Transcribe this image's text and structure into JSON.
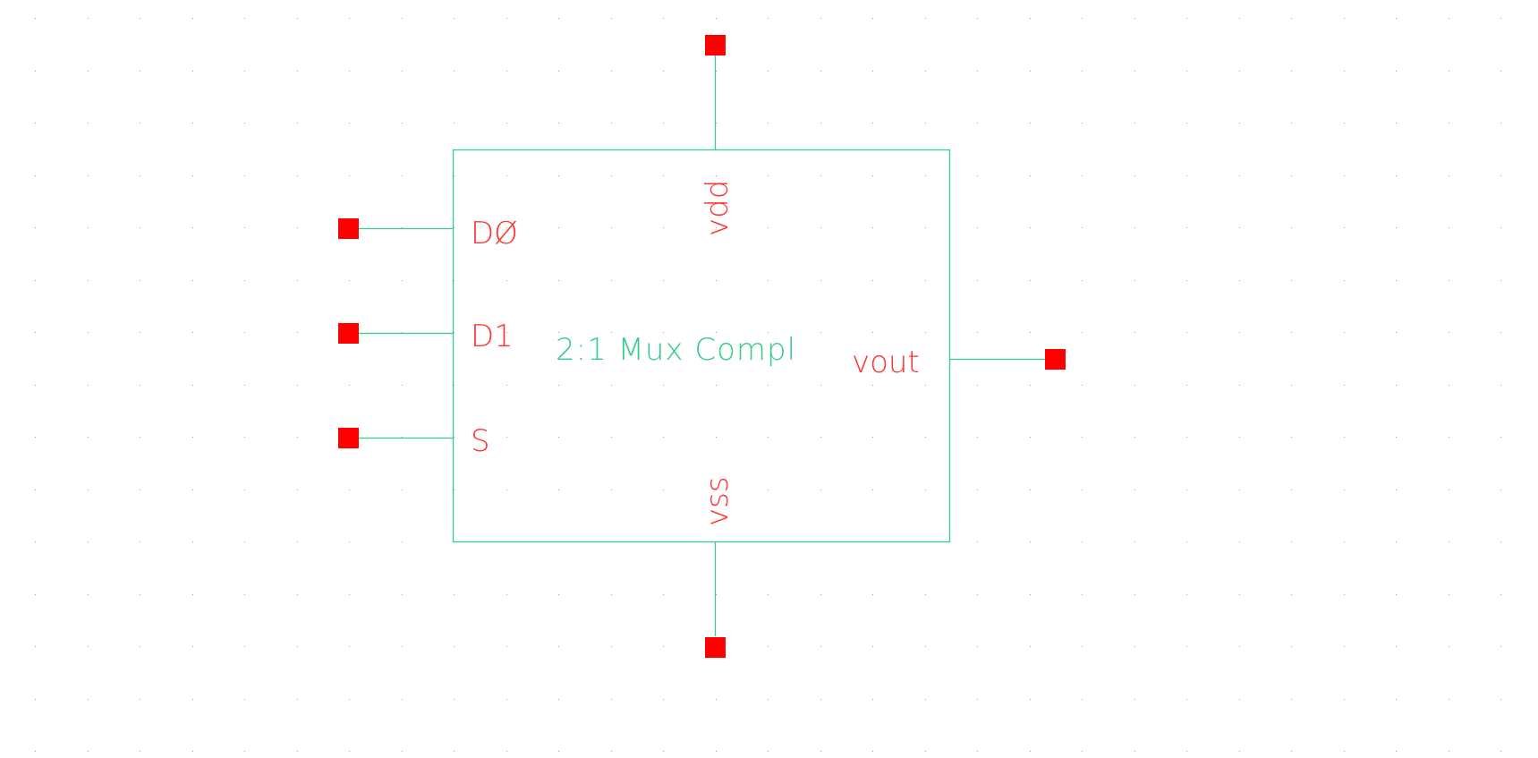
{
  "symbol": {
    "title": "2:1 Mux Compl",
    "pins": {
      "d0": "DØ",
      "d1": "D1",
      "s": "S",
      "vout": "vout",
      "vdd": "vdd",
      "vss": "vss"
    }
  },
  "colors": {
    "background": "#ffffff",
    "grid_dot": "#9a9a9a",
    "wire": "#33cc88",
    "pin_square": "#ff0000",
    "pin_label": "#ff3333",
    "title_text": "#33cc88"
  }
}
